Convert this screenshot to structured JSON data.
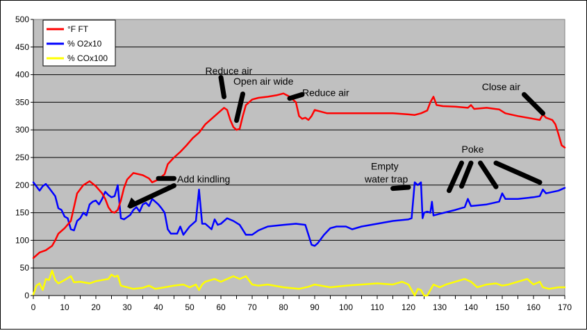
{
  "chart_data": {
    "type": "line",
    "title": "",
    "xlabel": "",
    "ylabel": "",
    "xlim": [
      0,
      170
    ],
    "ylim": [
      0,
      500
    ],
    "x_ticks": [
      0,
      10,
      20,
      30,
      40,
      50,
      60,
      70,
      80,
      90,
      100,
      110,
      120,
      130,
      140,
      150,
      160,
      170
    ],
    "y_ticks": [
      0,
      50,
      100,
      150,
      200,
      250,
      300,
      350,
      400,
      450,
      500
    ],
    "grid": "horizontal",
    "legend_position": "top-left",
    "plot_background": "#C0C0C0",
    "series": [
      {
        "name": "°F FT",
        "color": "#FF0000",
        "points": [
          [
            0,
            68
          ],
          [
            2,
            78
          ],
          [
            4,
            82
          ],
          [
            6,
            90
          ],
          [
            7,
            100
          ],
          [
            8,
            112
          ],
          [
            10,
            122
          ],
          [
            12,
            135
          ],
          [
            13,
            160
          ],
          [
            14,
            185
          ],
          [
            16,
            200
          ],
          [
            18,
            207
          ],
          [
            20,
            198
          ],
          [
            22,
            185
          ],
          [
            23,
            175
          ],
          [
            24,
            160
          ],
          [
            25,
            152
          ],
          [
            26,
            150
          ],
          [
            27,
            155
          ],
          [
            28,
            172
          ],
          [
            29,
            195
          ],
          [
            30,
            210
          ],
          [
            32,
            222
          ],
          [
            35,
            218
          ],
          [
            37,
            212
          ],
          [
            38,
            205
          ],
          [
            40,
            210
          ],
          [
            42,
            220
          ],
          [
            43,
            238
          ],
          [
            45,
            250
          ],
          [
            47,
            260
          ],
          [
            49,
            272
          ],
          [
            51,
            285
          ],
          [
            53,
            295
          ],
          [
            55,
            310
          ],
          [
            57,
            320
          ],
          [
            59,
            330
          ],
          [
            61,
            340
          ],
          [
            62,
            336
          ],
          [
            63,
            318
          ],
          [
            64,
            305
          ],
          [
            65,
            300
          ],
          [
            66,
            302
          ],
          [
            67,
            325
          ],
          [
            68,
            345
          ],
          [
            70,
            355
          ],
          [
            72,
            358
          ],
          [
            75,
            360
          ],
          [
            78,
            363
          ],
          [
            80,
            366
          ],
          [
            82,
            360
          ],
          [
            84,
            350
          ],
          [
            85,
            325
          ],
          [
            86,
            320
          ],
          [
            87,
            322
          ],
          [
            88,
            318
          ],
          [
            89,
            325
          ],
          [
            90,
            336
          ],
          [
            92,
            333
          ],
          [
            94,
            330
          ],
          [
            96,
            330
          ],
          [
            100,
            330
          ],
          [
            105,
            330
          ],
          [
            110,
            330
          ],
          [
            115,
            330
          ],
          [
            120,
            328
          ],
          [
            122,
            327
          ],
          [
            124,
            330
          ],
          [
            126,
            335
          ],
          [
            127,
            350
          ],
          [
            128,
            360
          ],
          [
            129,
            345
          ],
          [
            131,
            343
          ],
          [
            135,
            342
          ],
          [
            139,
            340
          ],
          [
            140,
            345
          ],
          [
            141,
            338
          ],
          [
            145,
            340
          ],
          [
            149,
            337
          ],
          [
            151,
            330
          ],
          [
            155,
            325
          ],
          [
            160,
            320
          ],
          [
            162,
            318
          ],
          [
            163,
            328
          ],
          [
            164,
            322
          ],
          [
            165,
            320
          ],
          [
            166,
            318
          ],
          [
            167,
            310
          ],
          [
            168,
            292
          ],
          [
            169,
            272
          ],
          [
            170,
            268
          ]
        ]
      },
      {
        "name": "% O2x10",
        "color": "#0000FF",
        "points": [
          [
            0,
            205
          ],
          [
            2,
            190
          ],
          [
            3,
            198
          ],
          [
            4,
            202
          ],
          [
            5,
            195
          ],
          [
            7,
            180
          ],
          [
            8,
            158
          ],
          [
            9,
            155
          ],
          [
            10,
            143
          ],
          [
            11,
            140
          ],
          [
            12,
            120
          ],
          [
            13,
            118
          ],
          [
            14,
            135
          ],
          [
            15,
            140
          ],
          [
            16,
            150
          ],
          [
            17,
            145
          ],
          [
            18,
            165
          ],
          [
            19,
            170
          ],
          [
            20,
            172
          ],
          [
            21,
            165
          ],
          [
            22,
            175
          ],
          [
            23,
            188
          ],
          [
            24,
            182
          ],
          [
            25,
            178
          ],
          [
            26,
            180
          ],
          [
            27,
            200
          ],
          [
            28,
            140
          ],
          [
            29,
            138
          ],
          [
            30,
            142
          ],
          [
            31,
            146
          ],
          [
            32,
            155
          ],
          [
            33,
            160
          ],
          [
            34,
            152
          ],
          [
            35,
            165
          ],
          [
            36,
            168
          ],
          [
            37,
            162
          ],
          [
            38,
            175
          ],
          [
            39,
            170
          ],
          [
            40,
            165
          ],
          [
            41,
            158
          ],
          [
            42,
            150
          ],
          [
            43,
            120
          ],
          [
            44,
            112
          ],
          [
            46,
            112
          ],
          [
            47,
            125
          ],
          [
            48,
            110
          ],
          [
            50,
            125
          ],
          [
            51,
            130
          ],
          [
            52,
            135
          ],
          [
            53,
            192
          ],
          [
            54,
            130
          ],
          [
            55,
            130
          ],
          [
            57,
            120
          ],
          [
            58,
            138
          ],
          [
            59,
            128
          ],
          [
            60,
            130
          ],
          [
            62,
            140
          ],
          [
            64,
            135
          ],
          [
            66,
            128
          ],
          [
            68,
            110
          ],
          [
            70,
            110
          ],
          [
            72,
            118
          ],
          [
            75,
            125
          ],
          [
            80,
            128
          ],
          [
            84,
            130
          ],
          [
            87,
            128
          ],
          [
            88,
            110
          ],
          [
            89,
            92
          ],
          [
            90,
            90
          ],
          [
            91,
            95
          ],
          [
            93,
            110
          ],
          [
            95,
            122
          ],
          [
            97,
            125
          ],
          [
            100,
            125
          ],
          [
            102,
            120
          ],
          [
            105,
            125
          ],
          [
            110,
            130
          ],
          [
            115,
            135
          ],
          [
            120,
            138
          ],
          [
            121,
            140
          ],
          [
            122,
            205
          ],
          [
            123,
            200
          ],
          [
            124,
            205
          ],
          [
            124.5,
            140
          ],
          [
            125,
            150
          ],
          [
            126,
            152
          ],
          [
            127,
            150
          ],
          [
            127.5,
            170
          ],
          [
            128,
            145
          ],
          [
            130,
            148
          ],
          [
            135,
            155
          ],
          [
            138,
            160
          ],
          [
            139,
            175
          ],
          [
            140,
            162
          ],
          [
            145,
            165
          ],
          [
            149,
            170
          ],
          [
            150,
            185
          ],
          [
            151,
            175
          ],
          [
            155,
            175
          ],
          [
            160,
            178
          ],
          [
            162,
            180
          ],
          [
            163,
            192
          ],
          [
            164,
            185
          ],
          [
            168,
            190
          ],
          [
            170,
            195
          ]
        ]
      },
      {
        "name": "% COx100",
        "color": "#FFFF00",
        "points": [
          [
            0,
            2
          ],
          [
            1,
            18
          ],
          [
            2,
            22
          ],
          [
            3,
            10
          ],
          [
            4,
            30
          ],
          [
            5,
            28
          ],
          [
            6,
            45
          ],
          [
            7,
            28
          ],
          [
            8,
            22
          ],
          [
            10,
            28
          ],
          [
            12,
            35
          ],
          [
            13,
            24
          ],
          [
            15,
            25
          ],
          [
            18,
            22
          ],
          [
            20,
            26
          ],
          [
            22,
            28
          ],
          [
            24,
            30
          ],
          [
            25,
            38
          ],
          [
            26,
            34
          ],
          [
            27,
            36
          ],
          [
            28,
            18
          ],
          [
            30,
            15
          ],
          [
            32,
            12
          ],
          [
            35,
            14
          ],
          [
            37,
            18
          ],
          [
            39,
            12
          ],
          [
            42,
            15
          ],
          [
            45,
            18
          ],
          [
            48,
            20
          ],
          [
            50,
            15
          ],
          [
            52,
            20
          ],
          [
            53,
            10
          ],
          [
            54,
            20
          ],
          [
            55,
            25
          ],
          [
            58,
            30
          ],
          [
            60,
            25
          ],
          [
            62,
            30
          ],
          [
            64,
            35
          ],
          [
            66,
            30
          ],
          [
            68,
            35
          ],
          [
            70,
            20
          ],
          [
            72,
            18
          ],
          [
            75,
            20
          ],
          [
            80,
            15
          ],
          [
            85,
            12
          ],
          [
            88,
            16
          ],
          [
            90,
            20
          ],
          [
            95,
            15
          ],
          [
            100,
            18
          ],
          [
            105,
            20
          ],
          [
            110,
            22
          ],
          [
            115,
            20
          ],
          [
            118,
            25
          ],
          [
            120,
            20
          ],
          [
            121,
            10
          ],
          [
            122,
            0
          ],
          [
            123,
            12
          ],
          [
            124,
            10
          ],
          [
            125,
            0
          ],
          [
            126,
            0
          ],
          [
            127,
            10
          ],
          [
            128,
            20
          ],
          [
            130,
            15
          ],
          [
            132,
            20
          ],
          [
            135,
            25
          ],
          [
            138,
            30
          ],
          [
            140,
            25
          ],
          [
            142,
            15
          ],
          [
            145,
            20
          ],
          [
            148,
            22
          ],
          [
            150,
            18
          ],
          [
            152,
            20
          ],
          [
            155,
            25
          ],
          [
            158,
            30
          ],
          [
            160,
            20
          ],
          [
            162,
            25
          ],
          [
            163,
            15
          ],
          [
            165,
            12
          ],
          [
            168,
            15
          ],
          [
            170,
            15
          ]
        ]
      }
    ],
    "annotations": [
      {
        "text": "Reduce air",
        "x": 55,
        "y": 401,
        "anchor": "start"
      },
      {
        "text": "Open air wide",
        "x": 64,
        "y": 382,
        "anchor": "start"
      },
      {
        "text": "Reduce air",
        "x": 86,
        "y": 361,
        "anchor": "start"
      },
      {
        "text": "Close air",
        "x": 143.5,
        "y": 372,
        "anchor": "start"
      },
      {
        "text": "Add kindling",
        "x": 46,
        "y": 205,
        "anchor": "start"
      },
      {
        "text": "Empty",
        "x": 108,
        "y": 228,
        "anchor": "start"
      },
      {
        "text": "water trap",
        "x": 106,
        "y": 205,
        "anchor": "start"
      },
      {
        "text": "Poke",
        "x": 137,
        "y": 259,
        "anchor": "start"
      }
    ],
    "arrows": [
      [
        [
          60,
          395
        ],
        [
          61,
          360
        ]
      ],
      [
        [
          67,
          365
        ],
        [
          65,
          317
        ]
      ],
      [
        [
          82,
          357
        ],
        [
          86,
          364
        ]
      ],
      [
        [
          157,
          364
        ],
        [
          163,
          330
        ]
      ],
      [
        [
          45,
          199
        ],
        [
          31,
          162
        ]
      ],
      [
        [
          45,
          212
        ],
        [
          40,
          212
        ]
      ],
      [
        [
          115,
          194
        ],
        [
          120,
          196
        ]
      ],
      [
        [
          137,
          240
        ],
        [
          133,
          190
        ]
      ],
      [
        [
          140,
          240
        ],
        [
          137,
          198
        ]
      ],
      [
        [
          143,
          240
        ],
        [
          148,
          197
        ]
      ],
      [
        [
          148,
          240
        ],
        [
          162,
          205
        ]
      ]
    ]
  }
}
